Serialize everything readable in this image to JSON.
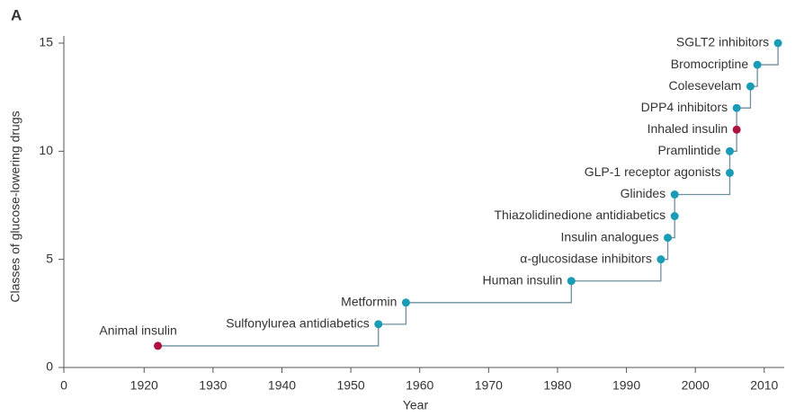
{
  "chart_data": {
    "type": "step",
    "panel_label": "A",
    "xlabel": "Year",
    "ylabel": "Classes of glucose-lowering drugs",
    "x_origin_label": "0",
    "x": [
      1922,
      1954,
      1958,
      1982,
      1995,
      1996,
      1997,
      1997,
      2005,
      2005,
      2006,
      2006,
      2008,
      2009,
      2012
    ],
    "series": [
      {
        "line_color": "#6f8f9c",
        "values": [
          1,
          2,
          3,
          4,
          5,
          6,
          7,
          8,
          9,
          10,
          11,
          12,
          13,
          14,
          15
        ],
        "labels": [
          "Animal insulin",
          "Sulfonylurea antidiabetics",
          "Metformin",
          "Human insulin",
          "α-glucosidase inhibitors",
          "Insulin analogues",
          "Thiazolidinedione antidiabetics",
          "Glinides",
          "GLP-1 receptor agonists",
          "Pramlintide",
          "Inhaled insulin",
          "DPP4 inhibitors",
          "Colesevelam",
          "Bromocriptine",
          "SGLT2 inhibitors"
        ],
        "colors": [
          "#b0123f",
          "#1a9cb6",
          "#1a9cb6",
          "#1a9cb6",
          "#1a9cb6",
          "#1a9cb6",
          "#1a9cb6",
          "#1a9cb6",
          "#1a9cb6",
          "#1a9cb6",
          "#b0123f",
          "#1a9cb6",
          "#1a9cb6",
          "#1a9cb6",
          "#1a9cb6"
        ]
      }
    ],
    "xlim": [
      1908.35,
      2015
    ],
    "xticks": [
      1920,
      1930,
      1940,
      1950,
      1960,
      1970,
      1980,
      1990,
      2000,
      2010
    ],
    "ylim": [
      0,
      15
    ],
    "yticks": [
      0,
      5,
      10,
      15
    ]
  }
}
